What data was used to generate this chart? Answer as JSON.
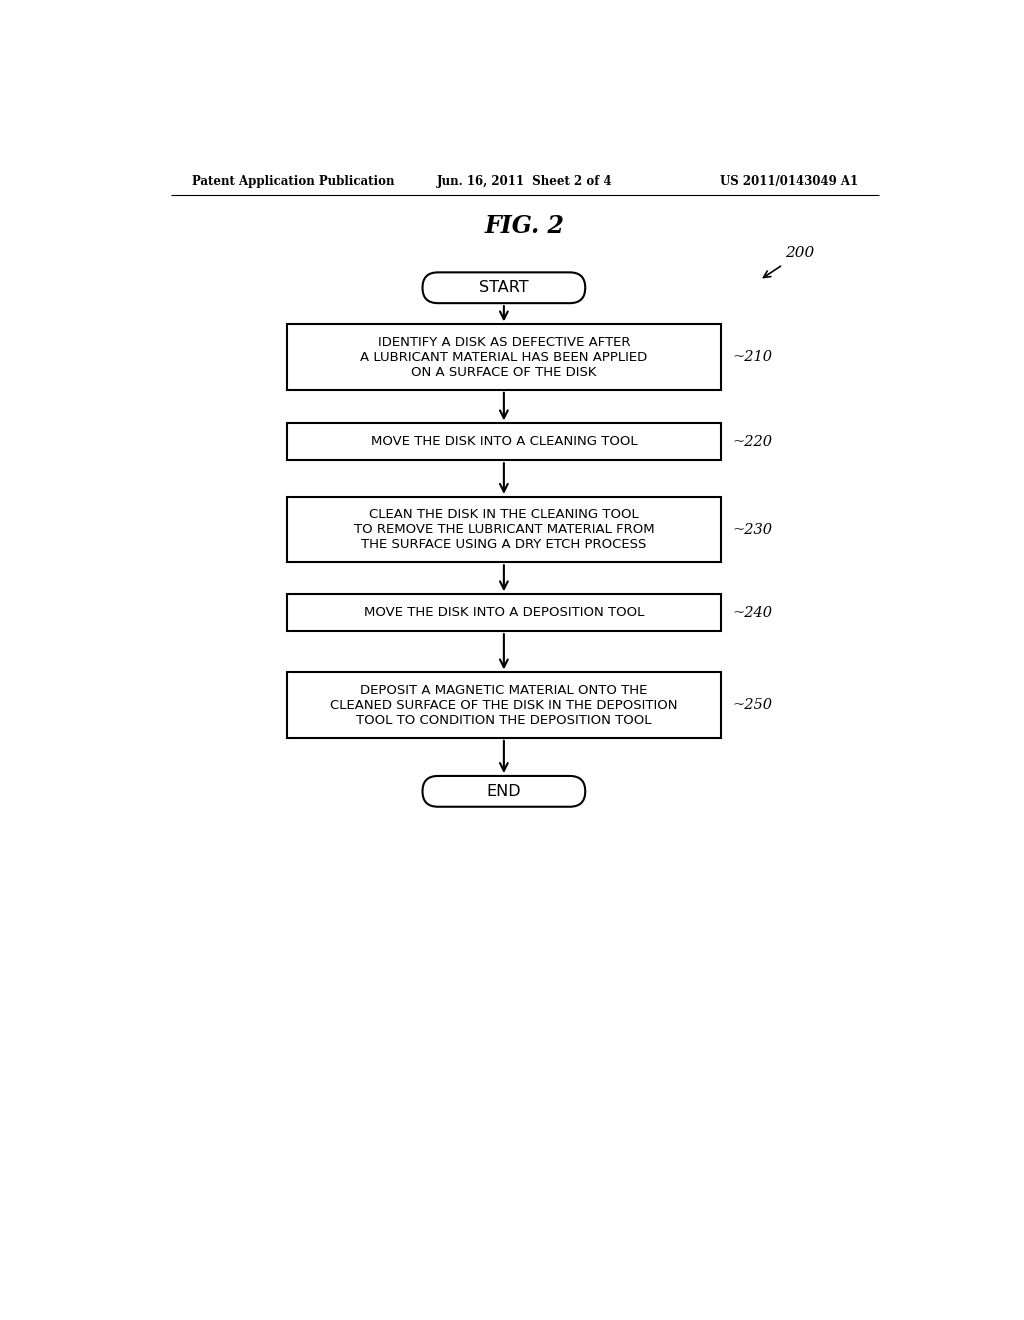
{
  "bg_color": "#ffffff",
  "header_left": "Patent Application Publication",
  "header_center": "Jun. 16, 2011  Sheet 2 of 4",
  "header_right": "US 2011/0143049 A1",
  "fig_title": "FIG. 2",
  "ref_num": "200",
  "start_label": "START",
  "end_label": "END",
  "boxes": [
    {
      "id": 210,
      "label": "IDENTIFY A DISK AS DEFECTIVE AFTER\nA LUBRICANT MATERIAL HAS BEEN APPLIED\nON A SURFACE OF THE DISK",
      "ref": "210"
    },
    {
      "id": 220,
      "label": "MOVE THE DISK INTO A CLEANING TOOL",
      "ref": "220"
    },
    {
      "id": 230,
      "label": "CLEAN THE DISK IN THE CLEANING TOOL\nTO REMOVE THE LUBRICANT MATERIAL FROM\nTHE SURFACE USING A DRY ETCH PROCESS",
      "ref": "230"
    },
    {
      "id": 240,
      "label": "MOVE THE DISK INTO A DEPOSITION TOOL",
      "ref": "240"
    },
    {
      "id": 250,
      "label": "DEPOSIT A MAGNETIC MATERIAL ONTO THE\nCLEANED SURFACE OF THE DISK IN THE DEPOSITION\nTOOL TO CONDITION THE DEPOSITION TOOL",
      "ref": "250"
    }
  ]
}
